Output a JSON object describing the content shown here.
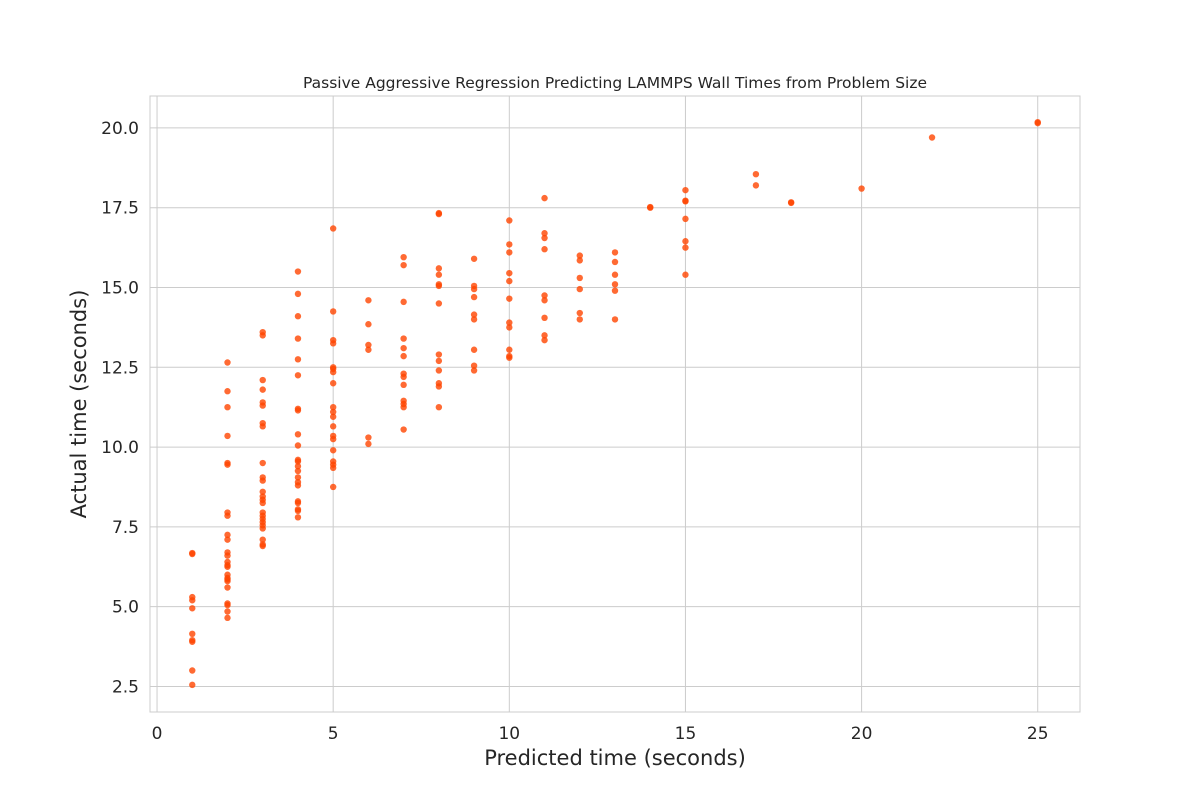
{
  "chart_data": {
    "type": "scatter",
    "title": "Passive Aggressive Regression Predicting LAMMPS Wall Times from Problem Size",
    "xlabel": "Predicted time (seconds)",
    "ylabel": "Actual time (seconds)",
    "xlim": [
      -0.2,
      26.2
    ],
    "ylim": [
      1.7,
      21.0
    ],
    "x_ticks": [
      0,
      5,
      10,
      15,
      20,
      25
    ],
    "x_tick_labels": [
      "0",
      "5",
      "10",
      "15",
      "20",
      "25"
    ],
    "y_ticks": [
      2.5,
      5.0,
      7.5,
      10.0,
      12.5,
      15.0,
      17.5,
      20.0
    ],
    "y_tick_labels": [
      "2.5",
      "5.0",
      "7.5",
      "10.0",
      "12.5",
      "15.0",
      "17.5",
      "20.0"
    ],
    "grid": true,
    "point_color": "#ff4500",
    "series": [
      {
        "points": [
          [
            1,
            2.55
          ],
          [
            1,
            3.0
          ],
          [
            1,
            3.9
          ],
          [
            1,
            3.95
          ],
          [
            1,
            4.15
          ],
          [
            1,
            4.95
          ],
          [
            1,
            5.2
          ],
          [
            1,
            5.3
          ],
          [
            1,
            6.65
          ],
          [
            1,
            6.68
          ],
          [
            2,
            4.65
          ],
          [
            2,
            4.85
          ],
          [
            2,
            5.05
          ],
          [
            2,
            5.1
          ],
          [
            2,
            5.6
          ],
          [
            2,
            5.8
          ],
          [
            2,
            5.85
          ],
          [
            2,
            5.9
          ],
          [
            2,
            6.0
          ],
          [
            2,
            6.25
          ],
          [
            2,
            6.3
          ],
          [
            2,
            6.4
          ],
          [
            2,
            6.6
          ],
          [
            2,
            6.7
          ],
          [
            2,
            7.1
          ],
          [
            2,
            7.25
          ],
          [
            2,
            7.85
          ],
          [
            2,
            7.95
          ],
          [
            2,
            9.45
          ],
          [
            2,
            9.5
          ],
          [
            2,
            10.35
          ],
          [
            2,
            11.25
          ],
          [
            2,
            11.75
          ],
          [
            2,
            12.65
          ],
          [
            3,
            6.9
          ],
          [
            3,
            6.95
          ],
          [
            3,
            7.1
          ],
          [
            3,
            7.45
          ],
          [
            3,
            7.55
          ],
          [
            3,
            7.65
          ],
          [
            3,
            7.75
          ],
          [
            3,
            7.85
          ],
          [
            3,
            7.95
          ],
          [
            3,
            8.25
          ],
          [
            3,
            8.35
          ],
          [
            3,
            8.45
          ],
          [
            3,
            8.6
          ],
          [
            3,
            8.95
          ],
          [
            3,
            9.05
          ],
          [
            3,
            9.5
          ],
          [
            3,
            10.65
          ],
          [
            3,
            10.75
          ],
          [
            3,
            11.3
          ],
          [
            3,
            11.4
          ],
          [
            3,
            11.8
          ],
          [
            3,
            12.1
          ],
          [
            3,
            13.5
          ],
          [
            3,
            13.6
          ],
          [
            4,
            7.8
          ],
          [
            4,
            8.0
          ],
          [
            4,
            8.05
          ],
          [
            4,
            8.25
          ],
          [
            4,
            8.3
          ],
          [
            4,
            8.8
          ],
          [
            4,
            8.9
          ],
          [
            4,
            9.05
          ],
          [
            4,
            9.25
          ],
          [
            4,
            9.4
          ],
          [
            4,
            9.55
          ],
          [
            4,
            9.6
          ],
          [
            4,
            10.05
          ],
          [
            4,
            10.4
          ],
          [
            4,
            11.15
          ],
          [
            4,
            11.2
          ],
          [
            4,
            12.25
          ],
          [
            4,
            12.75
          ],
          [
            4,
            13.4
          ],
          [
            4,
            14.1
          ],
          [
            4,
            14.8
          ],
          [
            4,
            15.5
          ],
          [
            5,
            8.75
          ],
          [
            5,
            9.35
          ],
          [
            5,
            9.45
          ],
          [
            5,
            9.55
          ],
          [
            5,
            9.9
          ],
          [
            5,
            10.25
          ],
          [
            5,
            10.35
          ],
          [
            5,
            10.65
          ],
          [
            5,
            10.95
          ],
          [
            5,
            11.1
          ],
          [
            5,
            11.25
          ],
          [
            5,
            12.0
          ],
          [
            5,
            12.35
          ],
          [
            5,
            12.45
          ],
          [
            5,
            12.5
          ],
          [
            5,
            13.25
          ],
          [
            5,
            13.35
          ],
          [
            5,
            14.25
          ],
          [
            5,
            16.85
          ],
          [
            6,
            10.1
          ],
          [
            6,
            10.3
          ],
          [
            6,
            13.05
          ],
          [
            6,
            13.2
          ],
          [
            6,
            13.85
          ],
          [
            6,
            14.6
          ],
          [
            7,
            10.55
          ],
          [
            7,
            11.25
          ],
          [
            7,
            11.35
          ],
          [
            7,
            11.45
          ],
          [
            7,
            11.95
          ],
          [
            7,
            12.2
          ],
          [
            7,
            12.3
          ],
          [
            7,
            12.85
          ],
          [
            7,
            13.1
          ],
          [
            7,
            13.4
          ],
          [
            7,
            14.55
          ],
          [
            7,
            15.7
          ],
          [
            7,
            15.95
          ],
          [
            8,
            11.25
          ],
          [
            8,
            11.9
          ],
          [
            8,
            12.0
          ],
          [
            8,
            12.4
          ],
          [
            8,
            12.7
          ],
          [
            8,
            12.9
          ],
          [
            8,
            14.5
          ],
          [
            8,
            15.05
          ],
          [
            8,
            15.1
          ],
          [
            8,
            15.4
          ],
          [
            8,
            15.6
          ],
          [
            8,
            17.3
          ],
          [
            8,
            17.33
          ],
          [
            9,
            12.4
          ],
          [
            9,
            12.55
          ],
          [
            9,
            13.05
          ],
          [
            9,
            14.0
          ],
          [
            9,
            14.15
          ],
          [
            9,
            14.7
          ],
          [
            9,
            14.95
          ],
          [
            9,
            15.05
          ],
          [
            9,
            15.9
          ],
          [
            10,
            12.8
          ],
          [
            10,
            12.85
          ],
          [
            10,
            13.05
          ],
          [
            10,
            13.75
          ],
          [
            10,
            13.9
          ],
          [
            10,
            14.65
          ],
          [
            10,
            15.2
          ],
          [
            10,
            15.45
          ],
          [
            10,
            16.1
          ],
          [
            10,
            16.35
          ],
          [
            10,
            17.1
          ],
          [
            11,
            13.35
          ],
          [
            11,
            13.5
          ],
          [
            11,
            14.05
          ],
          [
            11,
            14.6
          ],
          [
            11,
            14.75
          ],
          [
            11,
            16.2
          ],
          [
            11,
            16.55
          ],
          [
            11,
            16.7
          ],
          [
            11,
            17.8
          ],
          [
            12,
            14.0
          ],
          [
            12,
            14.2
          ],
          [
            12,
            14.95
          ],
          [
            12,
            15.3
          ],
          [
            12,
            15.85
          ],
          [
            12,
            16.0
          ],
          [
            13,
            14.0
          ],
          [
            13,
            14.9
          ],
          [
            13,
            15.1
          ],
          [
            13,
            15.4
          ],
          [
            13,
            15.8
          ],
          [
            13,
            16.1
          ],
          [
            14,
            17.5
          ],
          [
            14,
            17.52
          ],
          [
            15,
            15.4
          ],
          [
            15,
            16.25
          ],
          [
            15,
            16.45
          ],
          [
            15,
            17.15
          ],
          [
            15,
            17.7
          ],
          [
            15,
            17.72
          ],
          [
            15,
            18.05
          ],
          [
            17,
            18.2
          ],
          [
            17,
            18.55
          ],
          [
            18,
            17.65
          ],
          [
            18,
            17.67
          ],
          [
            20,
            18.1
          ],
          [
            22,
            19.7
          ],
          [
            25,
            20.15
          ],
          [
            25,
            20.18
          ]
        ]
      }
    ]
  }
}
